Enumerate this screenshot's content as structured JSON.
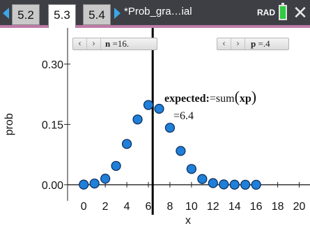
{
  "tabs": [
    {
      "label": "5.2",
      "active": false
    },
    {
      "label": "5.3",
      "active": true
    },
    {
      "label": "5.4",
      "active": false
    }
  ],
  "doc_title": "*Prob_gra…ial",
  "angle_mode": "RAD",
  "colors": {
    "topbar": "#3d3f45",
    "accent": "#3da6e8",
    "tab_underline": "#c07aa8",
    "point_fill": "#1f7fd9",
    "battery": "#2ecc40"
  },
  "sliders": {
    "n": {
      "var": "n",
      "value_text": "=16."
    },
    "p": {
      "var": "p",
      "value_text": "=.4"
    }
  },
  "annotation": {
    "label": "expected:",
    "expr": "=sum",
    "arg": "xp",
    "value": "=6.4"
  },
  "icons": [
    "chevron-left-icon",
    "chevron-right-icon",
    "battery-icon",
    "close-icon"
  ],
  "chart_data": {
    "type": "scatter",
    "title": "",
    "xlabel": "x",
    "ylabel": "prob",
    "xlim": [
      -1.5,
      21
    ],
    "ylim": [
      -0.04,
      0.39
    ],
    "x_ticks": [
      0,
      2,
      4,
      6,
      8,
      10,
      12,
      14,
      16,
      18,
      20
    ],
    "y_ticks": [
      {
        "value": 0.0,
        "label": "0.00"
      },
      {
        "value": 0.15,
        "label": "0.15"
      },
      {
        "value": 0.3,
        "label": "0.30"
      }
    ],
    "vertical_line_x": 6.4,
    "series": [
      {
        "x": [
          0,
          1,
          2,
          3,
          4,
          5,
          6,
          7,
          8,
          9,
          10,
          11,
          12,
          13,
          14,
          15,
          16
        ],
        "values": [
          0.0003,
          0.003,
          0.015,
          0.0468,
          0.1014,
          0.1623,
          0.1983,
          0.1889,
          0.1417,
          0.084,
          0.0392,
          0.0142,
          0.004,
          0.0008,
          0.0001,
          0.0,
          0.0
        ]
      }
    ]
  }
}
